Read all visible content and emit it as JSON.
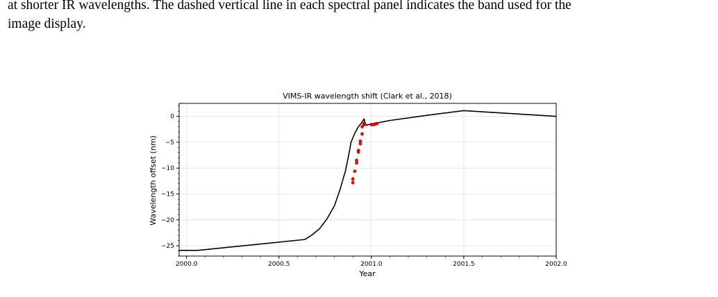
{
  "caption": {
    "line1": "at shorter IR wavelengths. The dashed vertical line in each spectral panel indicates the band used for the",
    "line2": "image display."
  },
  "chart_data": {
    "type": "line",
    "title": "VIMS-IR wavelength shift (Clark et al., 2018)",
    "xlabel": "Year",
    "ylabel": "Wavelength offset (nm)",
    "xlim": [
      1999.96,
      2002.0
    ],
    "ylim": [
      -27,
      2.5
    ],
    "xticks": [
      2000.0,
      2000.5,
      2001.0,
      2001.5,
      2002.0
    ],
    "xtick_labels": [
      "2000.0",
      "2000.5",
      "2001.0",
      "2001.5",
      "2002.0"
    ],
    "yticks": [
      0,
      -5,
      -10,
      -15,
      -20,
      -25
    ],
    "ytick_labels": [
      "0",
      "−5",
      "−10",
      "−15",
      "−20",
      "−25"
    ],
    "grid": true,
    "series": [
      {
        "color": "#000000",
        "style": "line",
        "x": [
          1999.96,
          2000.06,
          2000.64,
          2000.68,
          2000.72,
          2000.76,
          2000.8,
          2000.83,
          2000.86,
          2000.88,
          2000.89,
          2000.91,
          2000.93,
          2000.95,
          2000.96,
          2000.97,
          2001.1,
          2001.3,
          2001.5,
          2002.0
        ],
        "y": [
          -25.9,
          -25.9,
          -23.8,
          -22.9,
          -21.7,
          -19.8,
          -17.3,
          -14.2,
          -10.5,
          -7.0,
          -5.0,
          -3.3,
          -2.0,
          -1.1,
          -0.5,
          -1.7,
          -0.8,
          0.2,
          1.1,
          0.0
        ]
      },
      {
        "color": "#cc0000",
        "style": "markers",
        "x": [
          2000.9,
          2000.9,
          2000.91,
          2000.92,
          2000.92,
          2000.93,
          2000.93,
          2000.94,
          2000.94,
          2000.95,
          2000.95,
          2000.96,
          2000.96,
          2001.0,
          2001.01,
          2001.02,
          2001.03
        ],
        "y": [
          -12.8,
          -12.1,
          -10.6,
          -9.0,
          -8.5,
          -6.9,
          -6.6,
          -5.3,
          -4.8,
          -3.4,
          -2.0,
          -1.6,
          -1.4,
          -1.6,
          -1.6,
          -1.5,
          -1.4
        ]
      }
    ]
  }
}
